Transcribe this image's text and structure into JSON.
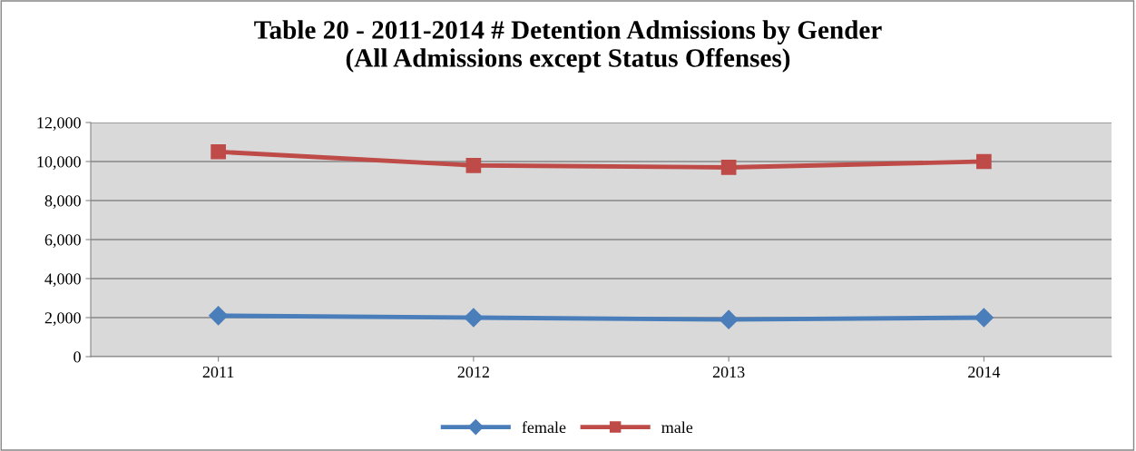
{
  "chart_data": {
    "type": "line",
    "title": "Table 20 - 2011-2014 # Detention Admissions by Gender\n(All Admissions except Status Offenses)",
    "categories": [
      "2011",
      "2012",
      "2013",
      "2014"
    ],
    "series": [
      {
        "name": "female",
        "color": "#4a7ebb",
        "marker": "diamond",
        "values": [
          2100,
          2000,
          1900,
          2000
        ]
      },
      {
        "name": "male",
        "color": "#be4b48",
        "marker": "square",
        "values": [
          10500,
          9800,
          9700,
          10000
        ]
      }
    ],
    "ylim": [
      0,
      12000
    ],
    "yticks": [
      {
        "value": 0,
        "label": "0"
      },
      {
        "value": 2000,
        "label": "2,000"
      },
      {
        "value": 4000,
        "label": "4,000"
      },
      {
        "value": 6000,
        "label": "6,000"
      },
      {
        "value": 8000,
        "label": "8,000"
      },
      {
        "value": 10000,
        "label": "10,000"
      },
      {
        "value": 12000,
        "label": "12,000"
      }
    ],
    "grid": "y",
    "legend": "bottom"
  }
}
